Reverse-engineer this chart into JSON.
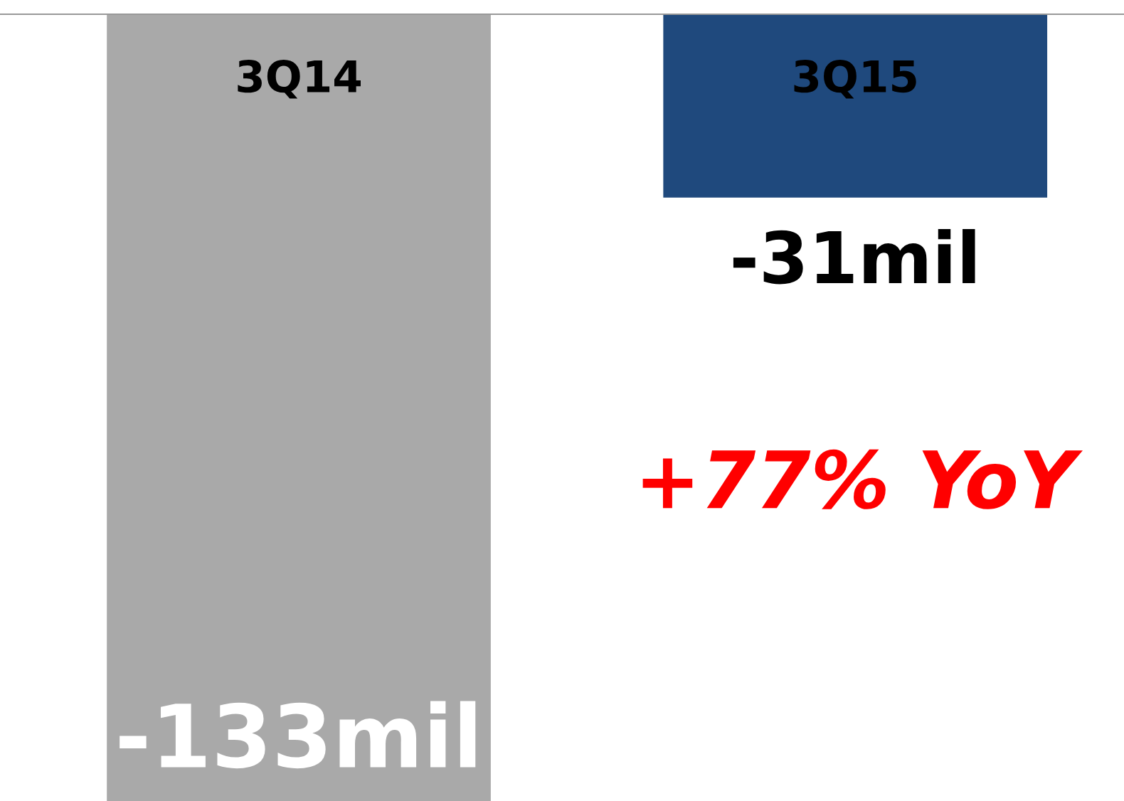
{
  "chart_data": {
    "type": "bar",
    "categories": [
      "3Q14",
      "3Q15"
    ],
    "values": [
      -133,
      -31
    ],
    "colors": [
      "#a9a9a9",
      "#1f497d"
    ],
    "value_labels": [
      "-133mil",
      "-31mil"
    ],
    "annotations": [
      "+77% YoY"
    ]
  }
}
